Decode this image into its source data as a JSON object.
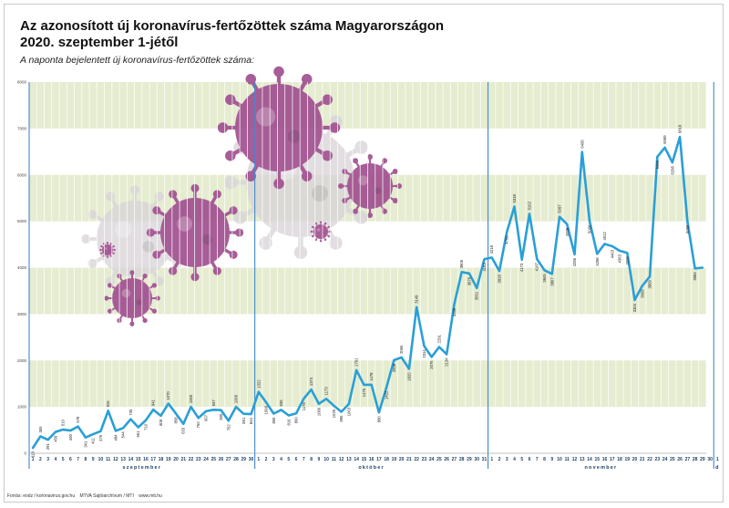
{
  "header": {
    "title_line1": "Az azonosított új koronavírus-fertőzöttek száma Magyarországon",
    "title_line2": "2020. szeptember 1-jétől",
    "subtitle": "A naponta bejelentett új koronavírus-fertőzöttek száma:"
  },
  "footer": {
    "source": "Forrás: eodz / koronavirus.gov.hu",
    "credit": "MTVA Sajtóarchívum / MTI",
    "site": "www.mti.hu"
  },
  "colors": {
    "line": "#2a9fd6",
    "band": "#e5ecd0",
    "month_divider": "#2f7dc8",
    "virus": "#a0508f"
  },
  "chart_data": {
    "type": "line",
    "ylim": [
      0,
      8000
    ],
    "yticks": [
      0,
      1000,
      2000,
      3000,
      4000,
      5000,
      6000,
      7000,
      8000
    ],
    "months": [
      {
        "label": "szeptember",
        "days": 30
      },
      {
        "label": "október",
        "days": 31
      },
      {
        "label": "november",
        "days": 30
      },
      {
        "label": "d",
        "days": 1
      }
    ],
    "values": [
      118,
      365,
      291,
      459,
      510,
      490,
      578,
      341,
      411,
      476,
      916,
      484,
      544,
      735,
      561,
      710,
      941,
      808,
      1070,
      858,
      633,
      1000,
      760,
      907,
      937,
      930,
      702,
      1000,
      851,
      844,
      1322,
      1099,
      855,
      935,
      816,
      860,
      1176,
      1374,
      1066,
      1173,
      1025,
      895,
      1063,
      1791,
      1476,
      1478,
      880,
      1422,
      2008,
      2066,
      1820,
      3149,
      2314,
      2076,
      2291,
      2134,
      3209,
      3906,
      3876,
      3561,
      4183,
      4218,
      3928,
      4769,
      5318,
      4173,
      5162,
      4187,
      3945,
      3867,
      5097,
      4938,
      4286,
      6495,
      5000,
      4298,
      4512,
      4463,
      4363,
      4320,
      3304,
      3609,
      3809,
      6390,
      6589,
      6268,
      6819,
      5000,
      3984,
      4000
    ],
    "labels": [
      "118",
      "365",
      "291",
      "459",
      "510",
      "490",
      "578",
      "341",
      "411",
      "476",
      "916",
      "484",
      "544",
      "735",
      "561",
      "710",
      "941",
      "808",
      "1070",
      "858",
      "633",
      "1000",
      "760",
      "907",
      "937",
      "930",
      "702",
      "1000",
      "851",
      "844",
      "1322",
      "1099",
      "855",
      "935",
      "816",
      "860",
      "1176",
      "1374",
      "1066",
      "1173",
      "1025",
      "895",
      "1063",
      "1791",
      "1476",
      "1478",
      "880",
      "1422",
      "2008",
      "2066",
      "1820",
      "3149",
      "2314",
      "2076",
      "2291",
      "2134",
      "3209",
      "3906",
      "3876",
      "3561",
      "4183",
      "4218",
      "3928",
      "4769",
      "5318",
      "4173",
      "5162",
      "4187",
      "3945",
      "3867",
      "5097",
      "4938",
      "4286",
      "6495",
      "5000",
      "4298",
      "4512",
      "4463",
      "4363",
      "4320",
      "3304",
      "3609",
      "3809",
      "6390",
      "6589",
      "6268",
      "6819",
      "5000",
      "3984",
      ""
    ]
  }
}
